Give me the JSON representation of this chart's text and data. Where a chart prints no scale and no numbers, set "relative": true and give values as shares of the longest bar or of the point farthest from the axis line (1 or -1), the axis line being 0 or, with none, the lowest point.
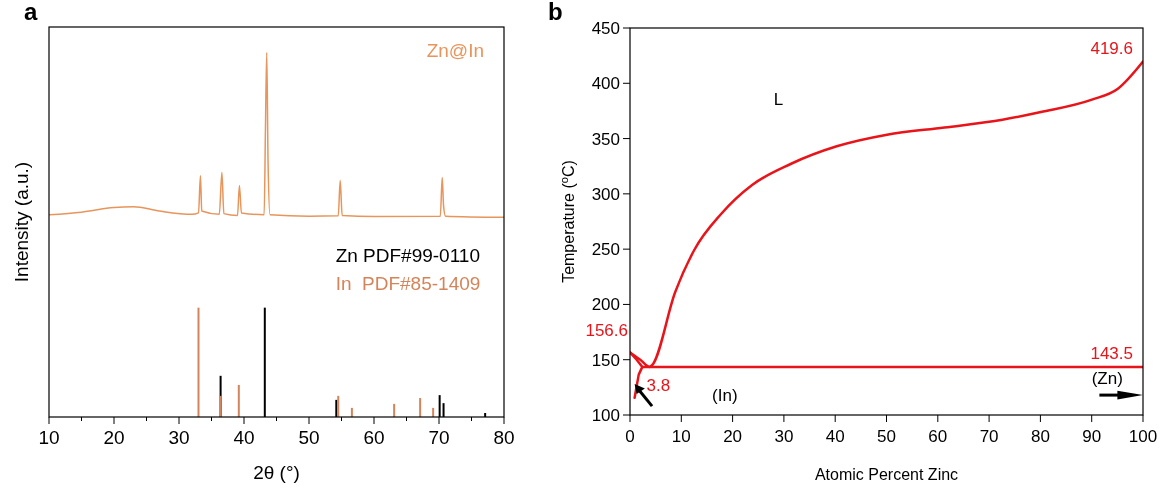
{
  "chart_data": [
    {
      "type": "line",
      "title": "a",
      "xlabel": "2θ (°)",
      "ylabel": "Intensity (a.u.)",
      "relative": true,
      "tick_labels": "x",
      "legend": "right",
      "grid": false,
      "xlim": [
        10,
        80
      ],
      "xticks": [
        10,
        {
          "value": 15,
          "label": null
        },
        20,
        {
          "value": 25,
          "label": null
        },
        30,
        {
          "value": 35,
          "label": null
        },
        40,
        {
          "value": 45,
          "label": null
        },
        50,
        {
          "value": 55,
          "label": null
        },
        60,
        {
          "value": 65,
          "label": null
        },
        70,
        {
          "value": 75,
          "label": null
        },
        80
      ],
      "series": [
        {
          "name": "Zn@In",
          "color": "#e8955c",
          "x": [
            10,
            15,
            20,
            23,
            27,
            32,
            33.0,
            33.3,
            33.5,
            36.2,
            36.6,
            36.9,
            39.0,
            39.3,
            39.6,
            43.1,
            43.3,
            43.5,
            43.7,
            44.0,
            50,
            54.5,
            54.8,
            55.1,
            60,
            70.2,
            70.5,
            70.7,
            71.0,
            80
          ],
          "values": [
            0.555,
            0.562,
            0.575,
            0.577,
            0.565,
            0.556,
            0.56,
            0.662,
            0.565,
            0.556,
            0.671,
            0.558,
            0.553,
            0.635,
            0.56,
            0.555,
            0.79,
            1,
            0.7,
            0.555,
            0.551,
            0.552,
            0.649,
            0.553,
            0.55,
            0.551,
            0.657,
            0.58,
            0.551,
            0.548
          ]
        },
        {
          "name": "Zn PDF#99-0110",
          "type": "bar",
          "color": "#000000",
          "x": [
            36.4,
            43.2,
            54.2,
            70.1,
            70.7,
            77.1
          ],
          "values": [
            0.113,
            0.3,
            0.047,
            0.06,
            0.038,
            0.011
          ]
        },
        {
          "name": "In  PDF#85-1409",
          "type": "bar",
          "color": "#d4845a",
          "x": [
            33.0,
            36.4,
            39.2,
            54.5,
            56.6,
            63.1,
            67.1,
            69.1
          ],
          "values": [
            0.3,
            0.058,
            0.088,
            0.058,
            0.025,
            0.036,
            0.052,
            0.025
          ]
        }
      ]
    },
    {
      "type": "line",
      "title": "b",
      "xlabel": "Atomic Percent Zinc",
      "ylabel": "Temperature ($^{o}$C)",
      "grid": false,
      "legend": false,
      "xlim": [
        0,
        100
      ],
      "xticks": [
        0,
        10,
        20,
        30,
        40,
        50,
        60,
        70,
        80,
        90,
        100
      ],
      "ylim": [
        100,
        450
      ],
      "yticks": [
        100,
        150,
        200,
        250,
        300,
        350,
        400,
        450
      ],
      "series": [
        {
          "color": "#e8141a",
          "x": [
            0,
            2,
            3.8,
            4.3,
            8.8,
            12.5,
            17.8,
            23.8,
            31.3,
            40.3,
            50.1,
            61.3,
            72.6,
            80.1,
            89.9,
            95.1,
            100
          ],
          "values": [
            156.6,
            150,
            143.5,
            145,
            211,
            249,
            282,
            308,
            327,
            343,
            353.5,
            360,
            367,
            374,
            385,
            395,
            419.6
          ]
        },
        {
          "color": "#e8141a",
          "x": [
            2.4,
            100
          ],
          "values": [
            143.5,
            143.5
          ]
        },
        {
          "color": "#e8141a",
          "x": [
            0,
            1.3,
            2.4,
            1.7,
            0.9
          ],
          "values": [
            156.6,
            150,
            143.5,
            136.5,
            115.6
          ]
        }
      ],
      "annotations": [
        {
          "text": "419.6",
          "x": 100,
          "y": 419.6
        },
        {
          "text": "156.6",
          "x": 0,
          "y": 156.6
        },
        {
          "text": "143.5",
          "x": 100,
          "y": 143.5
        },
        {
          "text": "3.8",
          "x": 3.8,
          "y": 143.5
        },
        "L",
        "(In)",
        "(Zn)"
      ]
    }
  ]
}
